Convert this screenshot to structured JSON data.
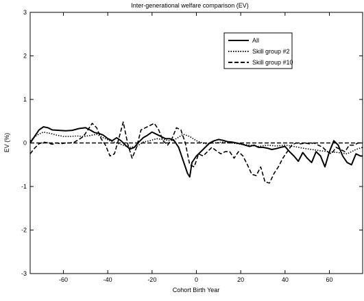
{
  "chart_data": {
    "type": "line",
    "title": "Inter-generational welfare comparison (EV)",
    "xlabel": "Cohort Birth Year",
    "ylabel": "EV (%)",
    "xlim": [
      -75,
      75
    ],
    "ylim": [
      -3,
      3
    ],
    "xticks": [
      -60,
      -40,
      -20,
      0,
      20,
      40,
      60
    ],
    "yticks": [
      -3,
      -2,
      -1,
      0,
      1,
      2,
      3
    ],
    "grid": false,
    "legend_position": "top-right",
    "series": [
      {
        "name": "All",
        "style": "solid",
        "x": [
          -75,
          -73,
          -71,
          -69,
          -67,
          -65,
          -62,
          -59,
          -56,
          -53,
          -50,
          -48,
          -46,
          -44,
          -42,
          -40,
          -38,
          -36,
          -34,
          -32,
          -30,
          -28,
          -26,
          -24,
          -22,
          -20,
          -18,
          -16,
          -14,
          -12,
          -10,
          -8,
          -6,
          -4,
          -3,
          -2,
          0,
          2,
          4,
          6,
          8,
          10,
          12,
          14,
          16,
          18,
          20,
          22,
          24,
          26,
          28,
          30,
          32,
          34,
          36,
          38,
          40,
          42,
          44,
          46,
          48,
          50,
          52,
          54,
          56,
          58,
          60,
          62,
          64,
          66,
          68,
          70,
          72,
          74,
          75
        ],
        "y": [
          0.0,
          0.15,
          0.3,
          0.37,
          0.35,
          0.3,
          0.29,
          0.28,
          0.29,
          0.33,
          0.35,
          0.3,
          0.24,
          0.22,
          0.18,
          0.1,
          0.05,
          0.12,
          0.05,
          -0.05,
          -0.14,
          -0.1,
          0.02,
          0.12,
          0.18,
          0.25,
          0.2,
          0.15,
          0.1,
          0.1,
          0.05,
          -0.1,
          -0.4,
          -0.7,
          -0.78,
          -0.45,
          -0.3,
          -0.2,
          -0.1,
          0.0,
          0.05,
          0.08,
          0.06,
          0.03,
          0.02,
          0.0,
          -0.02,
          -0.05,
          -0.08,
          -0.05,
          -0.1,
          -0.1,
          -0.12,
          -0.15,
          -0.13,
          -0.1,
          -0.08,
          -0.2,
          -0.3,
          -0.42,
          -0.22,
          -0.35,
          -0.45,
          -0.2,
          -0.3,
          -0.55,
          -0.2,
          0.05,
          -0.05,
          -0.3,
          -0.45,
          -0.5,
          -0.25,
          -0.3,
          -0.3
        ]
      },
      {
        "name": "Skill group #2",
        "style": "dotted",
        "x": [
          -75,
          -72,
          -69,
          -66,
          -63,
          -60,
          -57,
          -54,
          -51,
          -48,
          -45,
          -42,
          -39,
          -36,
          -33,
          -30,
          -27,
          -24,
          -21,
          -18,
          -15,
          -12,
          -9,
          -6,
          -3,
          0,
          4,
          8,
          12,
          16,
          20,
          24,
          28,
          32,
          36,
          40,
          44,
          48,
          52,
          56,
          60,
          64,
          68,
          72,
          75
        ],
        "y": [
          0.05,
          0.18,
          0.25,
          0.22,
          0.18,
          0.15,
          0.15,
          0.16,
          0.15,
          0.17,
          0.2,
          0.12,
          0.05,
          0.0,
          -0.05,
          -0.1,
          -0.08,
          0.02,
          0.05,
          0.1,
          0.08,
          0.05,
          0.1,
          0.2,
          0.15,
          0.05,
          -0.02,
          0.0,
          0.02,
          0.0,
          -0.03,
          -0.05,
          -0.08,
          -0.05,
          -0.07,
          -0.05,
          -0.08,
          -0.12,
          -0.15,
          -0.18,
          -0.2,
          -0.22,
          -0.25,
          -0.15,
          -0.1
        ]
      },
      {
        "name": "Skill group #10",
        "style": "dashed",
        "x": [
          -75,
          -73,
          -71,
          -69,
          -67,
          -65,
          -63,
          -61,
          -59,
          -57,
          -55,
          -53,
          -51,
          -49,
          -47,
          -45,
          -43,
          -41,
          -39,
          -37,
          -35,
          -33,
          -31,
          -29,
          -27,
          -25,
          -23,
          -21,
          -19,
          -17,
          -15,
          -13,
          -11,
          -9,
          -7,
          -5,
          -3,
          -1,
          1,
          3,
          5,
          7,
          9,
          11,
          13,
          15,
          17,
          19,
          21,
          23,
          25,
          27,
          29,
          31,
          33,
          35,
          37,
          39,
          41,
          43,
          45,
          47,
          49,
          51,
          53,
          55,
          57,
          59,
          61,
          63,
          65,
          67,
          69,
          71,
          73,
          75
        ],
        "y": [
          -0.25,
          -0.12,
          -0.02,
          0.02,
          0.0,
          -0.03,
          0.0,
          -0.02,
          0.0,
          0.0,
          0.02,
          0.08,
          0.15,
          0.3,
          0.45,
          0.35,
          0.1,
          -0.05,
          -0.3,
          -0.25,
          0.1,
          0.48,
          -0.02,
          -0.35,
          -0.1,
          0.3,
          0.35,
          0.4,
          0.45,
          0.3,
          0.05,
          -0.05,
          0.1,
          0.35,
          0.3,
          0.0,
          -0.5,
          -0.55,
          -0.25,
          -0.3,
          -0.2,
          -0.1,
          -0.18,
          -0.25,
          -0.2,
          -0.2,
          -0.35,
          -0.2,
          -0.3,
          -0.5,
          -0.72,
          -0.75,
          -0.55,
          -0.9,
          -0.92,
          -0.7,
          -0.55,
          -0.35,
          -0.2,
          -0.05,
          0.0,
          -0.02,
          0.0,
          -0.02,
          0.0,
          -0.05,
          -0.1,
          -0.2,
          -0.25,
          -0.1,
          -0.15,
          -0.2,
          -0.05,
          -0.05,
          0.0,
          0.0
        ]
      },
      {
        "name": "",
        "style": "dashed",
        "x": [
          -75,
          75
        ],
        "y": [
          0,
          0
        ]
      }
    ]
  }
}
